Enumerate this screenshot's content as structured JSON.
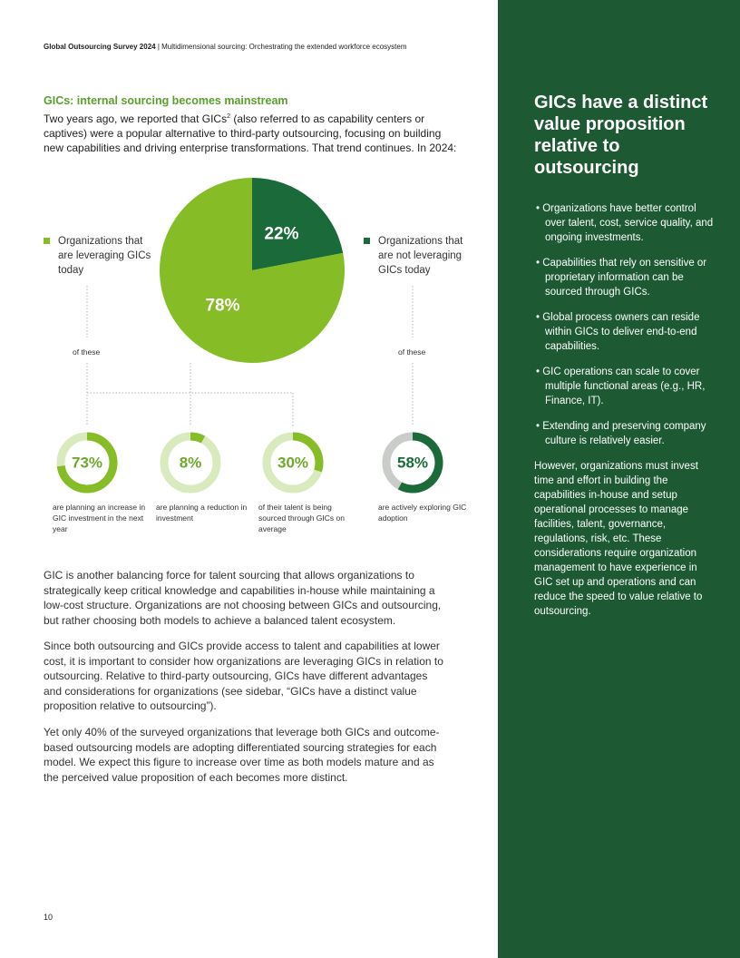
{
  "header": {
    "title": "Global Outsourcing Survey 2024",
    "separator": "|",
    "subtitle": "Multidimensional sourcing: Orchestrating the extended workforce ecosystem"
  },
  "section": {
    "heading": "GICs: internal sourcing becomes mainstream",
    "intro": {
      "before": "Two years ago, we reported that GICs",
      "sup": "2",
      "after": " (also referred to as capability centers or captives) were a popular alternative to third-party outsourcing, focusing on building new capabilities and driving enterprise transformations. That trend continues. In 2024:"
    }
  },
  "pie": {
    "slices": [
      {
        "label": "Organizations that are not leveraging GICs today",
        "value": 22,
        "value_label": "22%",
        "color": "#1b6b3a"
      },
      {
        "label": "Organizations that are leveraging GICs today",
        "value": 78,
        "value_label": "78%",
        "color": "#86bc25"
      }
    ]
  },
  "connectors": [
    "of these",
    "of these"
  ],
  "donuts": [
    {
      "value": 73,
      "value_label": "73%",
      "caption": "are planning an increase in GIC investment in the next year",
      "color": "#86bc25",
      "track_color": "#d9eabf",
      "label_color": "#6ea82a"
    },
    {
      "value": 8,
      "value_label": "8%",
      "caption": "are planning a reduction in investment",
      "color": "#86bc25",
      "track_color": "#d9eabf",
      "label_color": "#6ea82a"
    },
    {
      "value": 30,
      "value_label": "30%",
      "caption": "of their talent is being sourced through GICs on average",
      "color": "#86bc25",
      "track_color": "#d9eabf",
      "label_color": "#6ea82a"
    },
    {
      "value": 58,
      "value_label": "58%",
      "caption": "are actively exploring GIC adoption",
      "color": "#1b6b3a",
      "track_color": "#c9ccc9",
      "label_color": "#1b6b3a"
    }
  ],
  "paragraphs": [
    "GIC is another balancing force for talent sourcing that allows organizations to strategically keep critical knowledge and capabilities in-house while maintaining a low-cost structure. Organizations are not choosing between GICs and outsourcing, but rather choosing both models to achieve a balanced talent ecosystem.",
    "Since both outsourcing and GICs provide access to talent and capabilities at lower cost, it is important to consider how organizations are leveraging GICs in relation to outsourcing. Relative to third-party outsourcing, GICs have different advantages and considerations for organizations (see sidebar, “GICs have a distinct value proposition relative to outsourcing”).",
    "Yet only 40% of the surveyed organizations that leverage both GICs and outcome-based outsourcing models are adopting differentiated sourcing strategies for each model. We expect this figure to increase over time as both models mature and as the perceived value proposition of each becomes more distinct."
  ],
  "sidebar": {
    "title": "GICs have a distinct value proposition relative to outsourcing",
    "bullets": [
      "Organizations have better control over talent, cost, service quality, and ongoing investments.",
      "Capabilities that rely on sensitive or proprietary information can be sourced through GICs.",
      "Global process owners can reside within GICs to deliver end-to-end capabilities.",
      "GIC operations can scale to cover multiple functional areas (e.g., HR, Finance, IT).",
      "Extending and preserving company culture is relatively easier."
    ],
    "closing": "However, organizations must invest time and effort in building the capabilities in-house and setup operational processes to manage facilities, talent, governance, regulations, risk, etc. These considerations require organization management to have experience in GIC set up and operations and can reduce the speed to value relative to outsourcing."
  },
  "page_number": "10"
}
